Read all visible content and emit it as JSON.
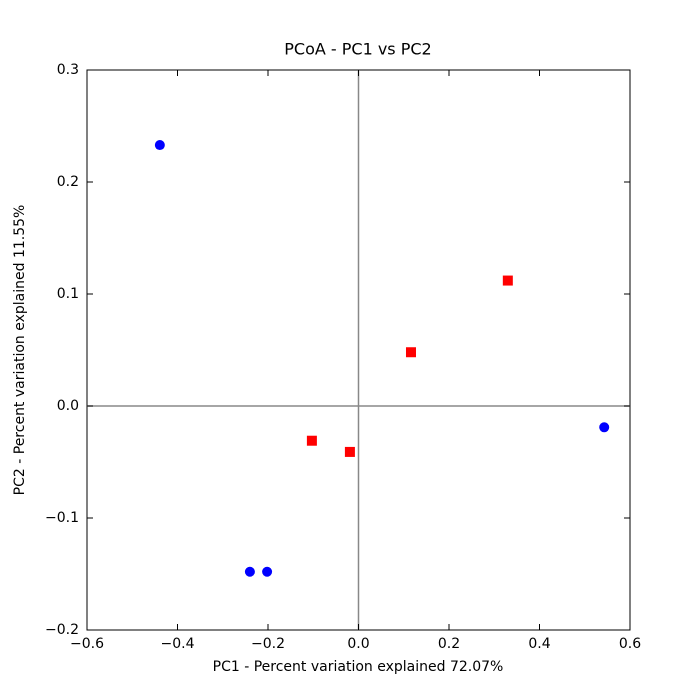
{
  "chart_data": {
    "type": "scatter",
    "title": "PCoA - PC1 vs PC2",
    "x_label": "PC1 - Percent variation explained 72.07%",
    "y_label": "PC2 - Percent variation explained 11.55%",
    "series": [
      {
        "color": "#0000ff",
        "marker": "circle",
        "x": [
          -0.439,
          -0.24,
          -0.202,
          0.543
        ],
        "values": [
          0.233,
          -0.148,
          -0.148,
          -0.019
        ]
      },
      {
        "color": "#ff0000",
        "marker": "square",
        "x": [
          0.33,
          0.116,
          -0.103,
          -0.019
        ],
        "values": [
          0.112,
          0.048,
          -0.031,
          -0.041
        ]
      }
    ],
    "xlim": [
      -0.6,
      0.6
    ],
    "xticks": [
      {
        "value": -0.6,
        "label": "−0.6"
      },
      {
        "value": -0.4,
        "label": "−0.4"
      },
      {
        "value": -0.2,
        "label": "−0.2"
      },
      {
        "value": 0,
        "label": "0.0"
      },
      0.2,
      0.4,
      0.6
    ],
    "ylim": [
      -0.2,
      0.3
    ],
    "yticks": [
      {
        "value": -0.2,
        "label": "−0.2"
      },
      {
        "value": -0.1,
        "label": "−0.1"
      },
      {
        "value": 0,
        "label": "0.0"
      },
      0.1,
      0.2,
      0.3
    ],
    "zero_lines": true,
    "grid": false
  }
}
